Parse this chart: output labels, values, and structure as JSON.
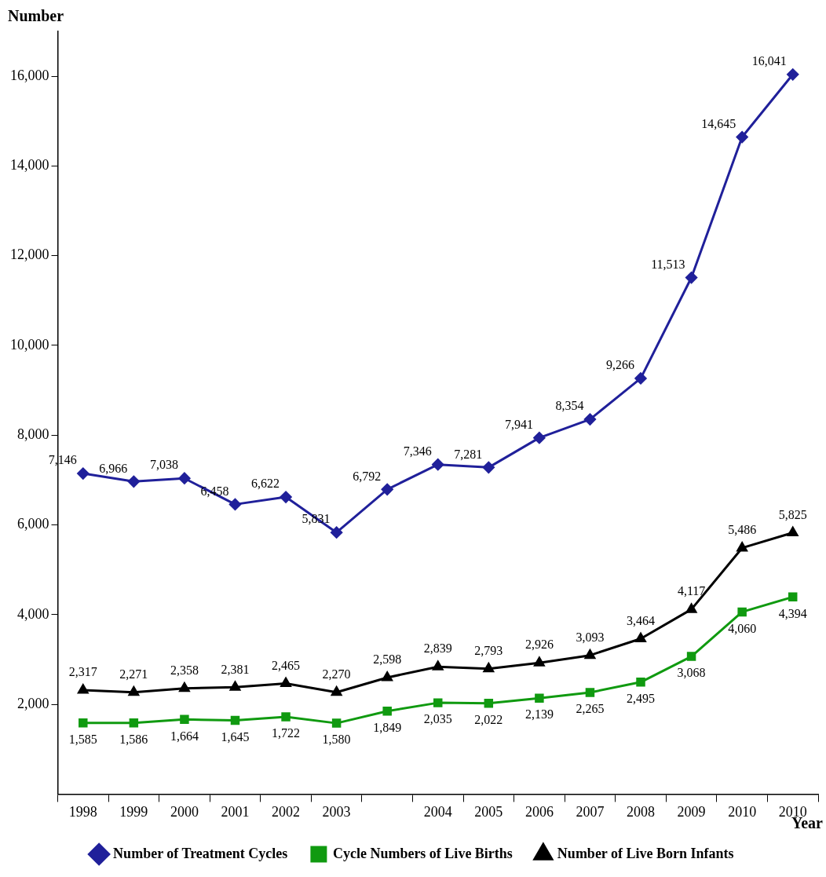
{
  "chart_data": {
    "type": "line",
    "ylabel": "Number",
    "xlabel": "Year",
    "categories": [
      "1998",
      "1999",
      "2000",
      "2001",
      "2002",
      "2003",
      null,
      "2004",
      "2005",
      "2006",
      "2007",
      "2008",
      "2009",
      "2010",
      "2010"
    ],
    "ylim": [
      0,
      17000
    ],
    "yticks": [
      {
        "value": 2000,
        "label": "2,000"
      },
      {
        "value": 4000,
        "label": "4,000"
      },
      {
        "value": 6000,
        "label": "6,000"
      },
      {
        "value": 8000,
        "label": "8,000"
      },
      {
        "value": 10000,
        "label": "10,000"
      },
      {
        "value": 12000,
        "label": "12,000"
      },
      {
        "value": 14000,
        "label": "14,000"
      },
      {
        "value": 16000,
        "label": "16,000"
      }
    ],
    "grid": false,
    "legend": "bottom",
    "series": [
      {
        "name": "Number of Treatment Cycles",
        "color": "#20209a",
        "marker": "diamond",
        "values": [
          7146,
          6966,
          7038,
          6458,
          6622,
          5831,
          6792,
          7346,
          7281,
          7941,
          8354,
          9266,
          11513,
          14645,
          16041
        ],
        "value_labels": [
          "7,146",
          "6,966",
          "7,038",
          "6,458",
          "6,622",
          "5,831",
          "6,792",
          "7,346",
          "7,281",
          "7,941",
          "8,354",
          "9,266",
          "11,513",
          "14,645",
          "16,041"
        ]
      },
      {
        "name": "Cycle Numbers of Live Births",
        "color": "#109a10",
        "marker": "square",
        "values": [
          1585,
          1586,
          1664,
          1645,
          1722,
          1580,
          1849,
          2035,
          2022,
          2139,
          2265,
          2495,
          3068,
          4060,
          4394
        ],
        "value_labels": [
          "1,585",
          "1,586",
          "1,664",
          "1,645",
          "1,722",
          "1,580",
          "1,849",
          "2,035",
          "2,022",
          "2,139",
          "2,265",
          "2,495",
          "3,068",
          "4,060",
          "4,394"
        ]
      },
      {
        "name": "Number of Live Born Infants",
        "color": "#000000",
        "marker": "triangle",
        "values": [
          2317,
          2271,
          2358,
          2381,
          2465,
          2270,
          2598,
          2839,
          2793,
          2926,
          3093,
          3464,
          4117,
          5486,
          5825
        ],
        "value_labels": [
          "2,317",
          "2,271",
          "2,358",
          "2,381",
          "2,465",
          "2,270",
          "2,598",
          "2,839",
          "2,793",
          "2,926",
          "3,093",
          "3,464",
          "4,117",
          "5,486",
          "5,825"
        ]
      }
    ]
  }
}
